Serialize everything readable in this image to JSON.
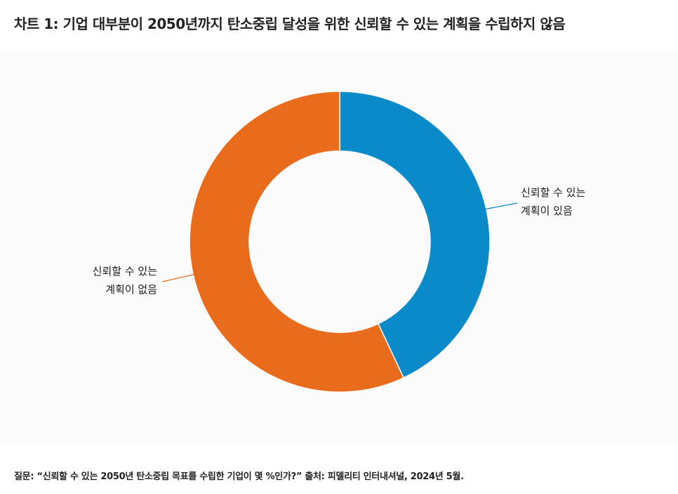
{
  "title": "차트 1: 기업 대부분이 2050년까지 탄소중립 달성을 위한 신뢰할 수 있는 계획을 수립하지 않음",
  "colors": {
    "has_plan": "#0a8ac8",
    "no_plan": "#e96b1c"
  },
  "chart_data": {
    "type": "pie",
    "donut": true,
    "slices": [
      {
        "line1": "신뢰할 수 있는",
        "line2": "계획이 있음",
        "value": 43,
        "color": "#0a8ac8"
      },
      {
        "line1": "신뢰할 수 있는",
        "line2": "계획이 없음",
        "value": 57,
        "color": "#e96b1c"
      }
    ]
  },
  "footer": {
    "text": "질문: “신뢰할 수 있는 2050년 탄소중립 목표를 수립한 기업이 몇 %인가?”  출처: 피델리티 인터내셔널, 2024년 5월."
  }
}
